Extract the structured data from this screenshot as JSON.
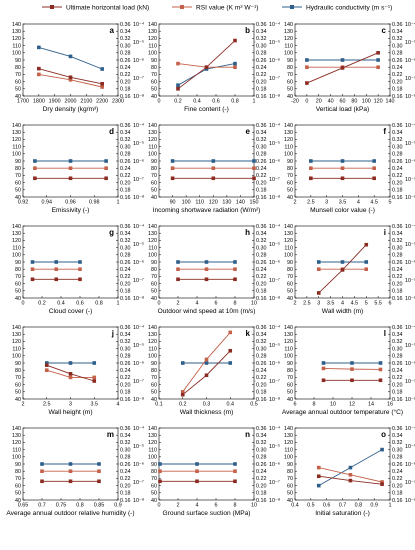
{
  "legend": {
    "load": "Ultimate horizontal load (kN)",
    "rsi": "RSI value (K m² W⁻¹)",
    "hyd": "Hydraulic conductivity (m s⁻¹)"
  },
  "colors": {
    "load": "#8b2b22",
    "rsi": "#c4614a",
    "hyd": "#2e5f8a"
  },
  "chart_data": [
    {
      "type": "line",
      "id": "a",
      "xlabel": "Dry density (kg/m³)",
      "xlim": [
        1700,
        2300
      ],
      "xticks": [
        1700,
        1800,
        1900,
        2000,
        2100,
        2200,
        2300
      ],
      "x": [
        1800,
        2000,
        2200
      ],
      "series": [
        {
          "name": "load",
          "values": [
            78,
            66,
            57
          ]
        },
        {
          "name": "rsi",
          "values": [
            0.22,
            0.205,
            0.185
          ]
        },
        {
          "name": "hyd",
          "values": [
            -5.3,
            -5.8,
            -6.5
          ]
        }
      ]
    },
    {
      "type": "line",
      "id": "b",
      "xlabel": "Fine content (-)",
      "xlim": [
        0,
        1.0
      ],
      "xticks": [
        0,
        0.2,
        0.4,
        0.6,
        0.8,
        1.0
      ],
      "x": [
        0.2,
        0.5,
        0.8
      ],
      "series": [
        {
          "name": "load",
          "values": [
            50,
            80,
            117
          ]
        },
        {
          "name": "rsi",
          "values": [
            0.25,
            0.24,
            0.24
          ]
        },
        {
          "name": "hyd",
          "values": [
            -7.4,
            -6.5,
            -6.2
          ]
        }
      ]
    },
    {
      "type": "line",
      "id": "c",
      "xlabel": "Vertical load (kPa)",
      "xlim": [
        -20,
        140
      ],
      "xticks": [
        -20,
        0,
        20,
        40,
        60,
        80,
        100,
        120,
        140
      ],
      "x": [
        0,
        60,
        120
      ],
      "series": [
        {
          "name": "load",
          "values": [
            58,
            79,
            100
          ]
        },
        {
          "name": "rsi",
          "values": [
            0.24,
            0.24,
            0.24
          ]
        },
        {
          "name": "hyd",
          "values": [
            -6.0,
            -6.0,
            -6.0
          ]
        }
      ]
    },
    {
      "type": "line",
      "id": "d",
      "xlabel": "Emissivity (-)",
      "xlim": [
        0.92,
        1.0
      ],
      "xticks": [
        0.92,
        0.94,
        0.96,
        0.98,
        1.0
      ],
      "x": [
        0.93,
        0.96,
        0.99
      ],
      "series": [
        {
          "name": "load",
          "values": [
            66,
            66,
            66
          ]
        },
        {
          "name": "rsi",
          "values": [
            0.24,
            0.24,
            0.24
          ]
        },
        {
          "name": "hyd",
          "values": [
            -6.0,
            -6.0,
            -6.0
          ]
        }
      ]
    },
    {
      "type": "line",
      "id": "e",
      "xlabel": "Incoming shortwave radiation (W/m²)",
      "xlim": [
        80,
        150
      ],
      "xticks": [
        90,
        100,
        110,
        120,
        130,
        140,
        150
      ],
      "x": [
        90,
        120,
        150
      ],
      "series": [
        {
          "name": "load",
          "values": [
            66,
            66,
            66
          ]
        },
        {
          "name": "rsi",
          "values": [
            0.24,
            0.24,
            0.24
          ]
        },
        {
          "name": "hyd",
          "values": [
            -6.0,
            -6.0,
            -6.0
          ]
        }
      ]
    },
    {
      "type": "line",
      "id": "f",
      "xlabel": "Munsell color value (-)",
      "xlim": [
        2.0,
        5.0
      ],
      "xticks": [
        2.0,
        2.5,
        3.0,
        3.5,
        4.0,
        4.5,
        5.0
      ],
      "x": [
        2.5,
        3.5,
        4.5
      ],
      "series": [
        {
          "name": "load",
          "values": [
            66,
            66,
            66
          ]
        },
        {
          "name": "rsi",
          "values": [
            0.24,
            0.24,
            0.24
          ]
        },
        {
          "name": "hyd",
          "values": [
            -6.0,
            -6.0,
            -6.0
          ]
        }
      ]
    },
    {
      "type": "line",
      "id": "g",
      "xlabel": "Cloud cover (-)",
      "xlim": [
        0,
        1.0
      ],
      "xticks": [
        0,
        0.2,
        0.4,
        0.6,
        0.8,
        1.0
      ],
      "x": [
        0.1,
        0.35,
        0.6
      ],
      "series": [
        {
          "name": "load",
          "values": [
            66,
            66,
            66
          ]
        },
        {
          "name": "rsi",
          "values": [
            0.24,
            0.24,
            0.24
          ]
        },
        {
          "name": "hyd",
          "values": [
            -6.0,
            -6.0,
            -6.0
          ]
        }
      ]
    },
    {
      "type": "line",
      "id": "h",
      "xlabel": "Outdoor wind speed at 10m (m/s)",
      "xlim": [
        0,
        10
      ],
      "xticks": [
        0,
        2,
        4,
        6,
        8,
        10
      ],
      "x": [
        2,
        5,
        8
      ],
      "series": [
        {
          "name": "load",
          "values": [
            66,
            66,
            66
          ]
        },
        {
          "name": "rsi",
          "values": [
            0.24,
            0.24,
            0.24
          ]
        },
        {
          "name": "hyd",
          "values": [
            -6.0,
            -6.0,
            -6.0
          ]
        }
      ]
    },
    {
      "type": "line",
      "id": "i",
      "xlabel": "Wall width (m)",
      "xlim": [
        2.0,
        6.0
      ],
      "xticks": [
        2.0,
        2.5,
        3.0,
        3.5,
        4.0,
        4.5,
        5.0,
        5.5,
        6.0
      ],
      "x": [
        3.0,
        4.0,
        5.0
      ],
      "series": [
        {
          "name": "load",
          "values": [
            47,
            79,
            114
          ]
        },
        {
          "name": "rsi",
          "values": [
            0.24,
            0.24,
            0.24
          ]
        },
        {
          "name": "hyd",
          "values": [
            -6.0,
            -6.0,
            -6.0
          ]
        }
      ]
    },
    {
      "type": "line",
      "id": "j",
      "xlabel": "Wall height (m)",
      "xlim": [
        2.0,
        4.0
      ],
      "xticks": [
        2.0,
        2.5,
        3.0,
        3.5,
        4.0
      ],
      "x": [
        2.5,
        3.0,
        3.5
      ],
      "series": [
        {
          "name": "load",
          "values": [
            87,
            75,
            65
          ]
        },
        {
          "name": "rsi",
          "values": [
            0.24,
            0.22,
            0.22
          ]
        },
        {
          "name": "hyd",
          "values": [
            -6.0,
            -6.0,
            -6.0
          ]
        }
      ]
    },
    {
      "type": "line",
      "id": "k",
      "xlabel": "Wall thickness (m)",
      "xlim": [
        0.1,
        0.5
      ],
      "xticks": [
        0.1,
        0.2,
        0.3,
        0.4,
        0.5
      ],
      "x": [
        0.2,
        0.3,
        0.4
      ],
      "series": [
        {
          "name": "load",
          "values": [
            46,
            73,
            107
          ]
        },
        {
          "name": "rsi",
          "values": [
            0.18,
            0.27,
            0.345
          ]
        },
        {
          "name": "hyd",
          "values": [
            -6.0,
            -6.0,
            -6.0
          ]
        }
      ]
    },
    {
      "type": "line",
      "id": "l",
      "xlabel": "Average annual outdoor temperature (°C)",
      "xlim": [
        6,
        16
      ],
      "xticks": [
        6,
        8,
        10,
        12,
        14,
        16
      ],
      "x": [
        9,
        12,
        15
      ],
      "series": [
        {
          "name": "load",
          "values": [
            66,
            66,
            66
          ]
        },
        {
          "name": "rsi",
          "values": [
            0.245,
            0.243,
            0.242
          ]
        },
        {
          "name": "hyd",
          "values": [
            -6.0,
            -6.0,
            -6.0
          ]
        }
      ]
    },
    {
      "type": "line",
      "id": "m",
      "xlabel": "Average annual outdoor relative humidity (-)",
      "xlim": [
        0.65,
        0.9
      ],
      "xticks": [
        0.65,
        0.7,
        0.75,
        0.8,
        0.85,
        0.9
      ],
      "x": [
        0.7,
        0.775,
        0.85
      ],
      "series": [
        {
          "name": "load",
          "values": [
            66,
            66,
            66
          ]
        },
        {
          "name": "rsi",
          "values": [
            0.24,
            0.24,
            0.24
          ]
        },
        {
          "name": "hyd",
          "values": [
            -6.0,
            -6.0,
            -6.0
          ]
        }
      ]
    },
    {
      "type": "line",
      "id": "n",
      "xlabel": "Ground surface suction (MPa)",
      "xlim": [
        0,
        10
      ],
      "xticks": [
        0,
        2,
        4,
        6,
        8,
        10
      ],
      "x": [
        0.1,
        4,
        8
      ],
      "series": [
        {
          "name": "load",
          "values": [
            66,
            66,
            66
          ]
        },
        {
          "name": "rsi",
          "values": [
            0.24,
            0.24,
            0.24
          ]
        },
        {
          "name": "hyd",
          "values": [
            -6.0,
            -6.0,
            -6.0
          ]
        }
      ]
    },
    {
      "type": "line",
      "id": "o",
      "xlabel": "Initial saturation (-)",
      "xlim": [
        0.4,
        1.0
      ],
      "xticks": [
        0.4,
        0.5,
        0.6,
        0.7,
        0.8,
        0.9,
        1.0
      ],
      "x": [
        0.55,
        0.75,
        0.95
      ],
      "series": [
        {
          "name": "load",
          "values": [
            73,
            67,
            62
          ]
        },
        {
          "name": "rsi",
          "values": [
            0.25,
            0.23,
            0.21
          ]
        },
        {
          "name": "hyd",
          "values": [
            -7.2,
            -6.2,
            -5.2
          ]
        }
      ]
    }
  ],
  "axes": {
    "left": {
      "range": [
        40,
        140
      ],
      "ticks": [
        40,
        50,
        60,
        70,
        80,
        90,
        100,
        110,
        120,
        130,
        140
      ]
    },
    "rsi": {
      "range": [
        0.16,
        0.36
      ],
      "ticks": [
        "0.16",
        "0.18",
        "0.20",
        "0.22",
        "0.24",
        "0.26",
        "0.28",
        "0.30",
        "0.32",
        "0.34",
        "0.36"
      ]
    },
    "hyd": {
      "range": [
        -8,
        -4
      ],
      "ticks": [
        -8,
        -7,
        -6,
        -5,
        -4
      ],
      "labels": [
        "10⁻⁸",
        "10⁻⁷",
        "10⁻⁶",
        "10⁻⁵",
        "10⁻⁴"
      ]
    }
  }
}
